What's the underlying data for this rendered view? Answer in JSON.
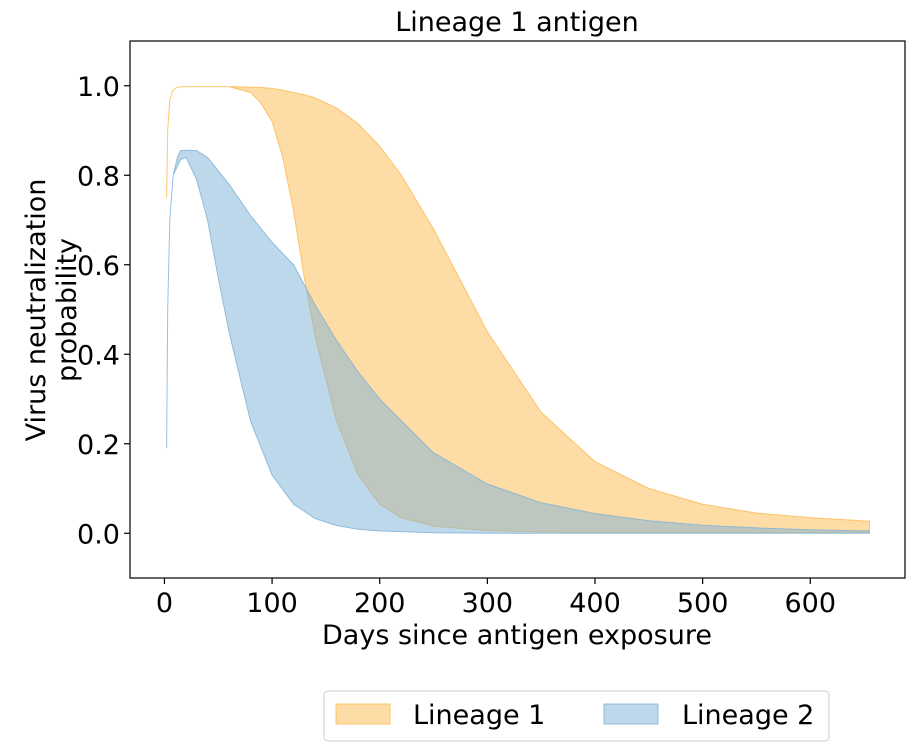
{
  "chart_data": {
    "type": "area",
    "title": "Lineage 1 antigen",
    "xlabel": "Days since antigen exposure",
    "ylabel_lines": [
      "Virus neutralization",
      "probability"
    ],
    "xlim": [
      -32,
      688
    ],
    "ylim": [
      -0.1,
      1.1
    ],
    "xticks": [
      0,
      100,
      200,
      300,
      400,
      500,
      600
    ],
    "yticks": [
      0.0,
      0.2,
      0.4,
      0.6,
      0.8,
      1.0
    ],
    "ytick_labels": [
      "0.0",
      "0.2",
      "0.4",
      "0.6",
      "0.8",
      "1.0"
    ],
    "legend_position": "below",
    "series": [
      {
        "name": "Lineage 1",
        "color": "#fdb94d",
        "x": [
          2,
          3,
          5,
          8,
          12,
          20,
          40,
          60,
          80,
          90,
          100,
          110,
          120,
          130,
          140,
          160,
          180,
          200,
          220,
          250,
          300,
          350,
          400,
          450,
          500,
          550,
          600,
          655
        ],
        "upper": [
          0.75,
          0.9,
          0.97,
          0.99,
          0.997,
          0.998,
          0.998,
          0.998,
          0.997,
          0.996,
          0.994,
          0.99,
          0.985,
          0.98,
          0.973,
          0.95,
          0.915,
          0.865,
          0.8,
          0.68,
          0.45,
          0.27,
          0.16,
          0.1,
          0.065,
          0.045,
          0.035,
          0.027
        ],
        "lower": [
          0.75,
          0.9,
          0.97,
          0.99,
          0.997,
          0.998,
          0.998,
          0.998,
          0.985,
          0.96,
          0.92,
          0.84,
          0.72,
          0.57,
          0.44,
          0.25,
          0.13,
          0.065,
          0.035,
          0.016,
          0.006,
          0.003,
          0.002,
          0.002,
          0.002,
          0.002,
          0.002,
          0.002
        ]
      },
      {
        "name": "Lineage 2",
        "color": "#7eb2d7",
        "x": [
          2,
          3,
          5,
          8,
          12,
          15,
          20,
          30,
          40,
          50,
          60,
          80,
          100,
          120,
          140,
          160,
          180,
          200,
          250,
          300,
          350,
          400,
          450,
          500,
          550,
          600,
          655
        ],
        "upper": [
          0.19,
          0.5,
          0.7,
          0.8,
          0.84,
          0.855,
          0.856,
          0.855,
          0.84,
          0.81,
          0.78,
          0.71,
          0.65,
          0.6,
          0.51,
          0.43,
          0.36,
          0.3,
          0.18,
          0.11,
          0.068,
          0.044,
          0.028,
          0.018,
          0.012,
          0.008,
          0.005
        ],
        "lower": [
          0.19,
          0.5,
          0.7,
          0.8,
          0.82,
          0.835,
          0.84,
          0.79,
          0.7,
          0.57,
          0.45,
          0.25,
          0.13,
          0.065,
          0.033,
          0.017,
          0.009,
          0.005,
          0.001,
          0.0,
          0.0,
          0.0,
          0.0,
          0.0,
          0.0,
          0.0,
          0.0
        ]
      }
    ]
  }
}
